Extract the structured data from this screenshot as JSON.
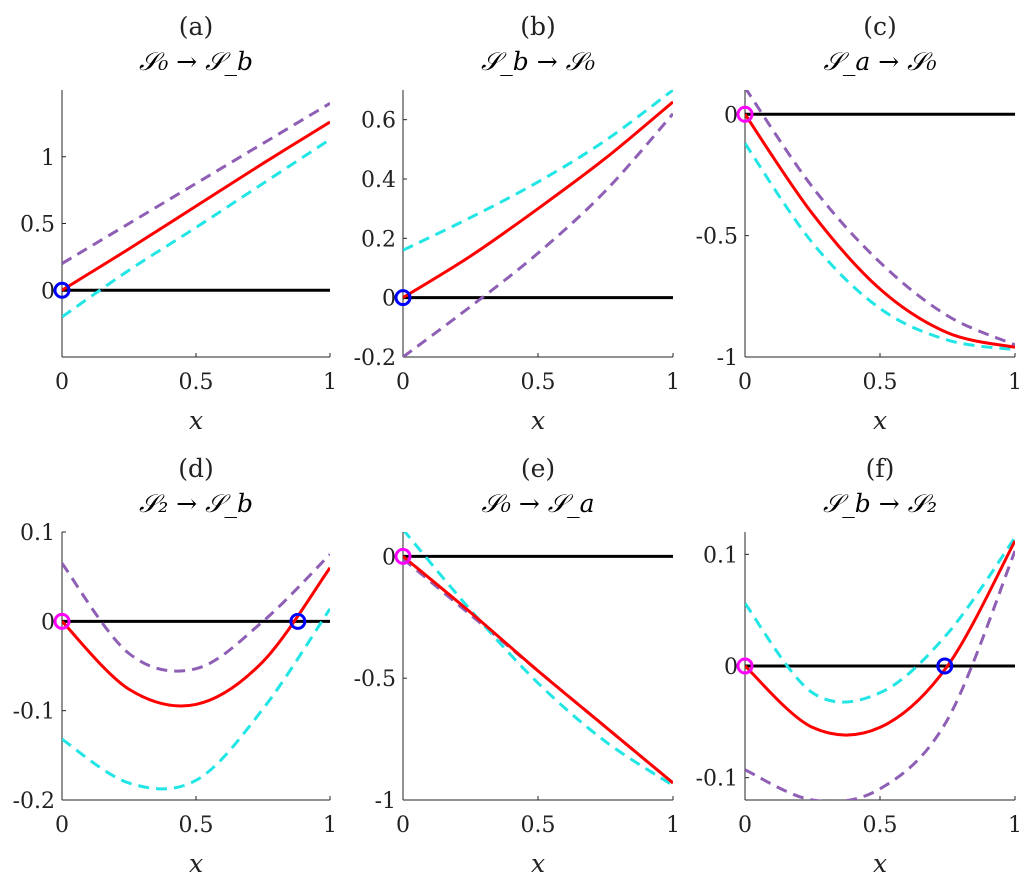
{
  "chart_data": [
    {
      "type": "line",
      "panel": "(a)",
      "title": "𝒮₀ → 𝒮_b",
      "xlabel": "x",
      "xlim": [
        0,
        1
      ],
      "ylim": [
        -0.5,
        1.5
      ],
      "xticks": [
        0,
        0.5,
        1
      ],
      "xtick_labels": [
        "0",
        "0.5",
        "1"
      ],
      "yticks": [
        0,
        0.5,
        1
      ],
      "ytick_labels": [
        "0",
        "0.5",
        "1"
      ],
      "series": [
        {
          "name": "baseline",
          "color": "#000000",
          "style": "solid",
          "x": [
            0,
            1
          ],
          "y": [
            0,
            0
          ]
        },
        {
          "name": "upper",
          "color": "#8e5fb5",
          "style": "dashed",
          "x": [
            0,
            0.25,
            0.5,
            0.75,
            1
          ],
          "y": [
            0.2,
            0.5,
            0.8,
            1.1,
            1.4
          ]
        },
        {
          "name": "lower",
          "color": "#22e5e5",
          "style": "dashed",
          "x": [
            0,
            0.25,
            0.5,
            0.75,
            1
          ],
          "y": [
            -0.2,
            0.15,
            0.47,
            0.8,
            1.13
          ]
        },
        {
          "name": "main",
          "color": "#ff0000",
          "style": "solid",
          "x": [
            0,
            0.25,
            0.5,
            0.75,
            1
          ],
          "y": [
            0,
            0.31,
            0.63,
            0.95,
            1.26
          ]
        }
      ],
      "markers": [
        {
          "x": 0,
          "y": 0,
          "color": "#0000ff"
        }
      ]
    },
    {
      "type": "line",
      "panel": "(b)",
      "title": "𝒮_b → 𝒮₀",
      "xlabel": "x",
      "xlim": [
        0,
        1
      ],
      "ylim": [
        -0.2,
        0.7
      ],
      "xticks": [
        0,
        0.5,
        1
      ],
      "xtick_labels": [
        "0",
        "0.5",
        "1"
      ],
      "yticks": [
        -0.2,
        0,
        0.2,
        0.4,
        0.6
      ],
      "ytick_labels": [
        "-0.2",
        "0",
        "0.2",
        "0.4",
        "0.6"
      ],
      "series": [
        {
          "name": "baseline",
          "color": "#000000",
          "style": "solid",
          "x": [
            0,
            1
          ],
          "y": [
            0,
            0
          ]
        },
        {
          "name": "upper",
          "color": "#22e5e5",
          "style": "dashed",
          "x": [
            0,
            0.25,
            0.5,
            0.75,
            1
          ],
          "y": [
            0.16,
            0.27,
            0.39,
            0.53,
            0.7
          ]
        },
        {
          "name": "lower",
          "color": "#8e5fb5",
          "style": "dashed",
          "x": [
            0,
            0.25,
            0.5,
            0.75,
            1
          ],
          "y": [
            -0.2,
            -0.03,
            0.15,
            0.36,
            0.62
          ]
        },
        {
          "name": "main",
          "color": "#ff0000",
          "style": "solid",
          "x": [
            0,
            0.25,
            0.5,
            0.75,
            1
          ],
          "y": [
            0,
            0.14,
            0.3,
            0.47,
            0.66
          ]
        }
      ],
      "markers": [
        {
          "x": 0,
          "y": 0,
          "color": "#0000ff"
        }
      ]
    },
    {
      "type": "line",
      "panel": "(c)",
      "title": "𝒮_a → 𝒮₀",
      "xlabel": "x",
      "xlim": [
        0,
        1
      ],
      "ylim": [
        -1,
        0.1
      ],
      "xticks": [
        0,
        0.5,
        1
      ],
      "xtick_labels": [
        "0",
        "0.5",
        "1"
      ],
      "yticks": [
        -1,
        -0.5,
        0
      ],
      "ytick_labels": [
        "-1",
        "-0.5",
        "0"
      ],
      "series": [
        {
          "name": "baseline",
          "color": "#000000",
          "style": "solid",
          "x": [
            0,
            1
          ],
          "y": [
            0,
            0
          ]
        },
        {
          "name": "upper",
          "color": "#8e5fb5",
          "style": "dashed",
          "x": [
            0,
            0.25,
            0.5,
            0.75,
            1
          ],
          "y": [
            0.11,
            -0.3,
            -0.61,
            -0.83,
            -0.95
          ]
        },
        {
          "name": "lower",
          "color": "#22e5e5",
          "style": "dashed",
          "x": [
            0,
            0.25,
            0.5,
            0.75,
            1
          ],
          "y": [
            -0.12,
            -0.53,
            -0.8,
            -0.93,
            -0.97
          ]
        },
        {
          "name": "main",
          "color": "#ff0000",
          "style": "solid",
          "x": [
            0,
            0.25,
            0.5,
            0.75,
            1
          ],
          "y": [
            0,
            -0.41,
            -0.72,
            -0.9,
            -0.96
          ]
        }
      ],
      "markers": [
        {
          "x": 0,
          "y": 0,
          "color": "#ff00ff"
        }
      ]
    },
    {
      "type": "line",
      "panel": "(d)",
      "title": "𝒮₂ → 𝒮_b",
      "xlabel": "x",
      "xlim": [
        0,
        1
      ],
      "ylim": [
        -0.2,
        0.1
      ],
      "xticks": [
        0,
        0.5,
        1
      ],
      "xtick_labels": [
        "0",
        "0.5",
        "1"
      ],
      "yticks": [
        -0.2,
        -0.1,
        0,
        0.1
      ],
      "ytick_labels": [
        "-0.2",
        "-0.1",
        "0",
        "0.1"
      ],
      "series": [
        {
          "name": "baseline",
          "color": "#000000",
          "style": "solid",
          "x": [
            0,
            1
          ],
          "y": [
            0,
            0
          ]
        },
        {
          "name": "upper",
          "color": "#8e5fb5",
          "style": "dashed",
          "x": [
            0,
            0.25,
            0.5,
            0.75,
            1
          ],
          "y": [
            0.065,
            -0.036,
            -0.053,
            0.0,
            0.075
          ]
        },
        {
          "name": "lower",
          "color": "#22e5e5",
          "style": "dashed",
          "x": [
            0,
            0.25,
            0.5,
            0.75,
            1
          ],
          "y": [
            -0.132,
            -0.181,
            -0.178,
            -0.098,
            0.014
          ]
        },
        {
          "name": "main",
          "color": "#ff0000",
          "style": "solid",
          "x": [
            0,
            0.25,
            0.5,
            0.75,
            1
          ],
          "y": [
            0,
            -0.076,
            -0.093,
            -0.045,
            0.06
          ]
        }
      ],
      "markers": [
        {
          "x": 0,
          "y": 0,
          "color": "#ff00ff"
        },
        {
          "x": 0.88,
          "y": 0,
          "color": "#0000ff"
        }
      ]
    },
    {
      "type": "line",
      "panel": "(e)",
      "title": "𝒮₀ → 𝒮_a",
      "xlabel": "x",
      "xlim": [
        0,
        1
      ],
      "ylim": [
        -1,
        0.1
      ],
      "xticks": [
        0,
        0.5,
        1
      ],
      "xtick_labels": [
        "0",
        "0.5",
        "1"
      ],
      "yticks": [
        -1,
        -0.5,
        0
      ],
      "ytick_labels": [
        "-1",
        "-0.5",
        "0"
      ],
      "series": [
        {
          "name": "baseline",
          "color": "#000000",
          "style": "solid",
          "x": [
            0,
            1
          ],
          "y": [
            0,
            0
          ]
        },
        {
          "name": "upper",
          "color": "#8e5fb5",
          "style": "dashed",
          "x": [
            0,
            0.25,
            0.5,
            0.75,
            1
          ],
          "y": [
            -0.01,
            -0.24,
            -0.47,
            -0.7,
            -0.93
          ]
        },
        {
          "name": "lower",
          "color": "#22e5e5",
          "style": "dashed",
          "x": [
            0,
            0.25,
            0.5,
            0.75,
            1
          ],
          "y": [
            0.11,
            -0.22,
            -0.52,
            -0.76,
            -0.94
          ]
        },
        {
          "name": "main",
          "color": "#ff0000",
          "style": "solid",
          "x": [
            0,
            0.25,
            0.5,
            0.75,
            1
          ],
          "y": [
            0,
            -0.23,
            -0.47,
            -0.7,
            -0.93
          ]
        }
      ],
      "markers": [
        {
          "x": 0,
          "y": 0,
          "color": "#ff00ff"
        }
      ]
    },
    {
      "type": "line",
      "panel": "(f)",
      "title": "𝒮_b → 𝒮₂",
      "xlabel": "x",
      "xlim": [
        0,
        1
      ],
      "ylim": [
        -0.12,
        0.12
      ],
      "xticks": [
        0,
        0.5,
        1
      ],
      "xtick_labels": [
        "0",
        "0.5",
        "1"
      ],
      "yticks": [
        -0.1,
        0,
        0.1
      ],
      "ytick_labels": [
        "-0.1",
        "0",
        "0.1"
      ],
      "series": [
        {
          "name": "baseline",
          "color": "#000000",
          "style": "solid",
          "x": [
            0,
            1
          ],
          "y": [
            0,
            0
          ]
        },
        {
          "name": "upper",
          "color": "#22e5e5",
          "style": "dashed",
          "x": [
            0,
            0.25,
            0.5,
            0.75,
            1
          ],
          "y": [
            0.056,
            -0.024,
            -0.024,
            0.029,
            0.115
          ]
        },
        {
          "name": "lower",
          "color": "#8e5fb5",
          "style": "dashed",
          "x": [
            0,
            0.25,
            0.5,
            0.75,
            1
          ],
          "y": [
            -0.093,
            -0.12,
            -0.11,
            -0.048,
            0.103
          ]
        },
        {
          "name": "main",
          "color": "#ff0000",
          "style": "solid",
          "x": [
            0,
            0.25,
            0.5,
            0.75,
            1
          ],
          "y": [
            0,
            -0.055,
            -0.055,
            0.0,
            0.112
          ]
        }
      ],
      "markers": [
        {
          "x": 0,
          "y": 0,
          "color": "#ff00ff"
        },
        {
          "x": 0.74,
          "y": 0,
          "color": "#0000ff"
        }
      ]
    }
  ]
}
